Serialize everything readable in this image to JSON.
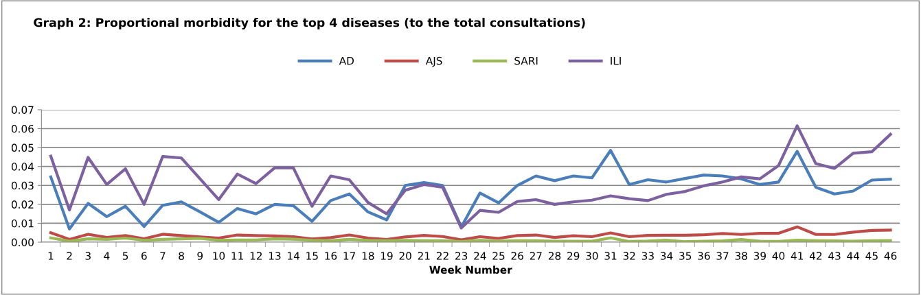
{
  "chart_data": {
    "type": "line",
    "title": "Graph 2: Proportional morbidity for the top 4 diseases (to the total consultations)",
    "xlabel": "Week Number",
    "categories": [
      "1",
      "2",
      "3",
      "4",
      "5",
      "6",
      "7",
      "8",
      "9",
      "10",
      "11",
      "12",
      "13",
      "14",
      "15",
      "16",
      "17",
      "18",
      "19",
      "20",
      "21",
      "22",
      "23",
      "24",
      "25",
      "26",
      "27",
      "28",
      "29",
      "30",
      "31",
      "32",
      "33",
      "34",
      "35",
      "36",
      "37",
      "38",
      "39",
      "40",
      "41",
      "42",
      "43",
      "44",
      "45",
      "46"
    ],
    "series": [
      {
        "name": "AD",
        "color": "#4a7ebb",
        "values": [
          0.0345,
          0.007,
          0.0205,
          0.0135,
          0.019,
          0.0083,
          0.0195,
          0.0213,
          0.016,
          0.0105,
          0.0178,
          0.015,
          0.02,
          0.0193,
          0.011,
          0.022,
          0.0255,
          0.016,
          0.0118,
          0.03,
          0.0315,
          0.03,
          0.008,
          0.026,
          0.0208,
          0.03,
          0.035,
          0.0325,
          0.035,
          0.034,
          0.0485,
          0.0305,
          0.033,
          0.0318,
          0.0337,
          0.0355,
          0.035,
          0.0335,
          0.0305,
          0.0318,
          0.048,
          0.029,
          0.0255,
          0.027,
          0.0328,
          0.0333
        ]
      },
      {
        "name": "AJS",
        "color": "#be4b48",
        "values": [
          0.005,
          0.0015,
          0.0042,
          0.0025,
          0.0035,
          0.0018,
          0.0042,
          0.0035,
          0.0028,
          0.0022,
          0.0038,
          0.0035,
          0.0033,
          0.0029,
          0.0017,
          0.0024,
          0.0038,
          0.0022,
          0.0014,
          0.0028,
          0.0036,
          0.003,
          0.0013,
          0.0029,
          0.002,
          0.0035,
          0.0038,
          0.0025,
          0.0034,
          0.0029,
          0.0049,
          0.0029,
          0.0036,
          0.0037,
          0.0037,
          0.0039,
          0.0046,
          0.0041,
          0.0047,
          0.0047,
          0.0081,
          0.0041,
          0.0041,
          0.0053,
          0.0062,
          0.0064
        ]
      },
      {
        "name": "SARI",
        "color": "#98b954",
        "values": [
          0.0023,
          0.0005,
          0.0018,
          0.0015,
          0.0022,
          0.001,
          0.0015,
          0.0018,
          0.002,
          0.001,
          0.0012,
          0.0012,
          0.0018,
          0.0016,
          0.001,
          0.0008,
          0.0015,
          0.001,
          0.0008,
          0.001,
          0.0008,
          0.0008,
          0.0003,
          0.001,
          0.0005,
          0.0008,
          0.0008,
          0.0005,
          0.0005,
          0.0005,
          0.0023,
          0.0004,
          0.0006,
          0.0011,
          0.0003,
          0.0005,
          0.0007,
          0.0014,
          0.0005,
          0.0004,
          0.0011,
          0.0008,
          0.0007,
          0.0005,
          0.0008,
          0.0009
        ]
      },
      {
        "name": "ILI",
        "color": "#7d60a0",
        "values": [
          0.0455,
          0.017,
          0.0448,
          0.0305,
          0.0388,
          0.02,
          0.0453,
          0.0445,
          0.0335,
          0.0225,
          0.036,
          0.031,
          0.0393,
          0.0393,
          0.019,
          0.035,
          0.033,
          0.021,
          0.015,
          0.0275,
          0.0305,
          0.029,
          0.0075,
          0.0168,
          0.0158,
          0.0215,
          0.0225,
          0.02,
          0.0213,
          0.0222,
          0.0245,
          0.023,
          0.022,
          0.0253,
          0.0268,
          0.0298,
          0.0318,
          0.0345,
          0.0335,
          0.0405,
          0.0615,
          0.0415,
          0.039,
          0.047,
          0.0478,
          0.057
        ]
      }
    ],
    "ylim": [
      0,
      0.07
    ],
    "yticks": [
      {
        "value": 0,
        "label": "0.00"
      },
      {
        "value": 0.01,
        "label": "0.01"
      },
      {
        "value": 0.02,
        "label": "0.02"
      },
      {
        "value": 0.03,
        "label": "0.03"
      },
      {
        "value": 0.04,
        "label": "0.04"
      },
      {
        "value": 0.05,
        "label": "0.05"
      },
      {
        "value": 0.06,
        "label": "0.06"
      },
      {
        "value": 0.07,
        "label": "0.07"
      }
    ],
    "grid": "y",
    "legend": "top",
    "marker": "none",
    "line_style": "solid"
  }
}
